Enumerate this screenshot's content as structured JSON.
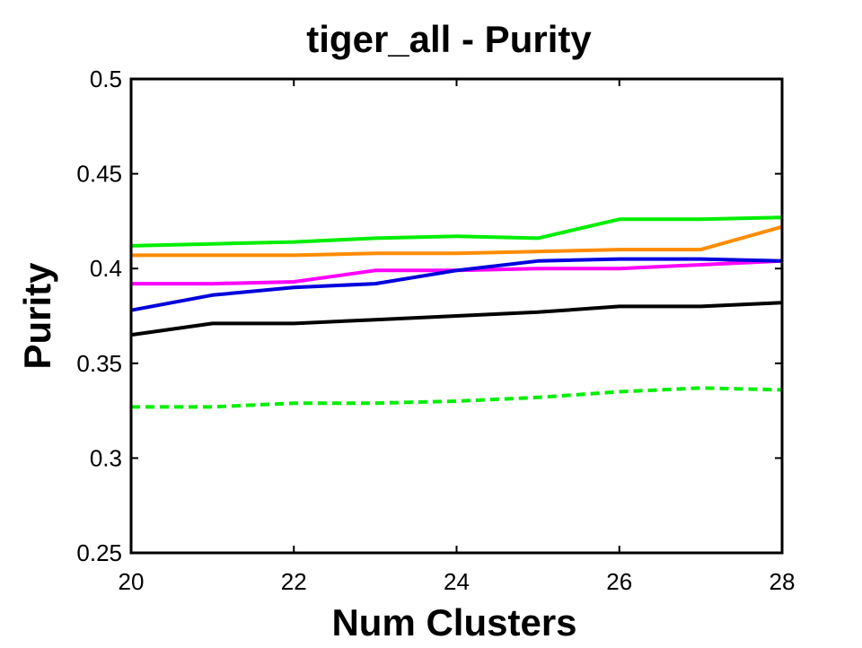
{
  "chart_data": {
    "type": "line",
    "title": "tiger_all - Purity",
    "xlabel": "Num Clusters",
    "ylabel": "Purity",
    "xlim": [
      20,
      28
    ],
    "ylim": [
      0.25,
      0.5
    ],
    "x_ticks": [
      "20",
      "22",
      "24",
      "26",
      "28"
    ],
    "y_ticks": [
      "0.25",
      "0.3",
      "0.35",
      "0.4",
      "0.45",
      "0.5"
    ],
    "grid": false,
    "x": [
      20,
      21,
      22,
      23,
      24,
      25,
      26,
      27,
      28
    ],
    "series": [
      {
        "name": "green",
        "color": "#00ee00",
        "dash": "solid",
        "values": [
          0.412,
          0.413,
          0.414,
          0.416,
          0.417,
          0.416,
          0.426,
          0.426,
          0.427
        ]
      },
      {
        "name": "orange",
        "color": "#ff8c00",
        "dash": "solid",
        "values": [
          0.407,
          0.407,
          0.407,
          0.408,
          0.408,
          0.409,
          0.41,
          0.41,
          0.422
        ]
      },
      {
        "name": "magenta",
        "color": "#ff00ff",
        "dash": "solid",
        "values": [
          0.392,
          0.392,
          0.393,
          0.399,
          0.399,
          0.4,
          0.4,
          0.402,
          0.404
        ]
      },
      {
        "name": "blue",
        "color": "#0000dd",
        "dash": "solid",
        "values": [
          0.378,
          0.386,
          0.39,
          0.392,
          0.399,
          0.404,
          0.405,
          0.405,
          0.404
        ]
      },
      {
        "name": "black",
        "color": "#000000",
        "dash": "solid",
        "values": [
          0.365,
          0.371,
          0.371,
          0.373,
          0.375,
          0.377,
          0.38,
          0.38,
          0.382
        ]
      },
      {
        "name": "green dashed",
        "color": "#00ee00",
        "dash": "dashed",
        "values": [
          0.327,
          0.327,
          0.329,
          0.329,
          0.33,
          0.332,
          0.335,
          0.337,
          0.336
        ]
      }
    ]
  }
}
